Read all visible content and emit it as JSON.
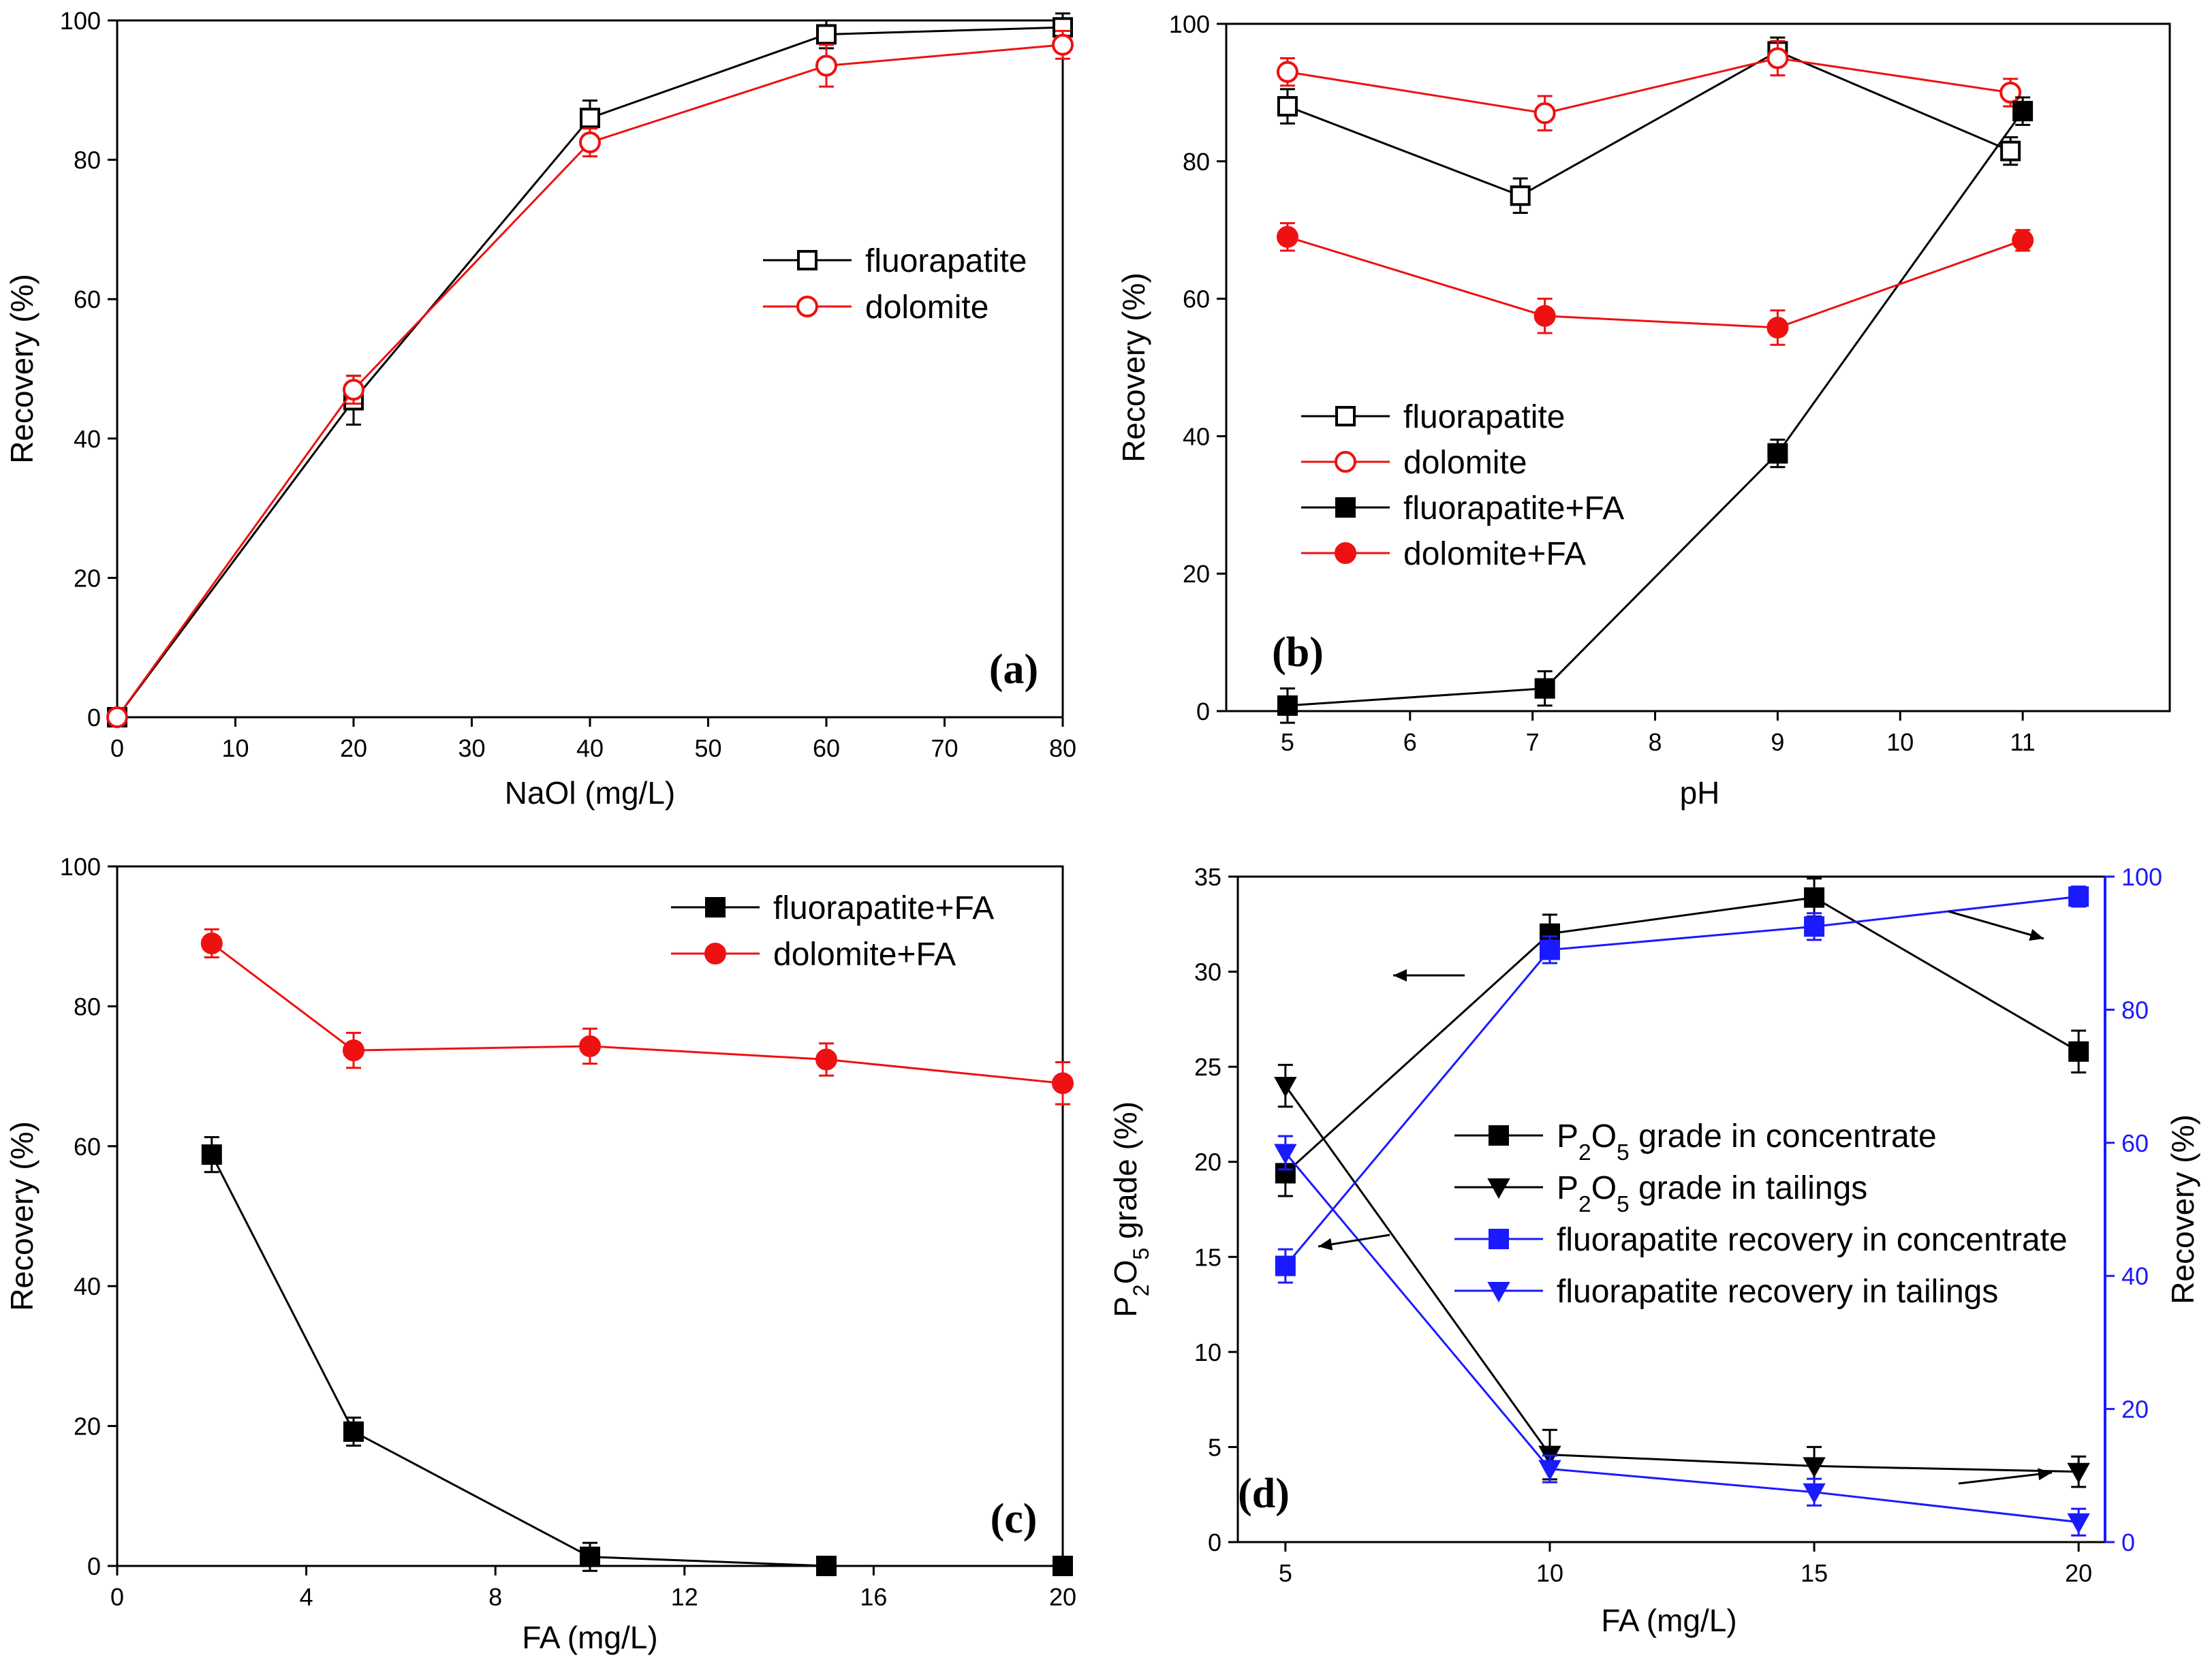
{
  "colors": {
    "black": "#000000",
    "red": "#ee1111",
    "blue": "#1a1aff"
  },
  "chart_data": [
    {
      "type": "line",
      "panel_label": "(a)",
      "xlabel": "NaOl (mg/L)",
      "ylabel": "Recovery (%)",
      "xlim": [
        0,
        80
      ],
      "ylim": [
        0,
        100
      ],
      "xticks": [
        0,
        10,
        20,
        30,
        40,
        50,
        60,
        70,
        80
      ],
      "yticks": [
        0,
        20,
        40,
        60,
        80,
        100
      ],
      "legend_position": "center-right",
      "series": [
        {
          "name": "fluorapatite",
          "color": "#000000",
          "marker": "square-open",
          "x": [
            0,
            20,
            40,
            60,
            80
          ],
          "y": [
            0,
            45.5,
            86,
            98,
            99
          ],
          "err": [
            0.5,
            3.5,
            2.5,
            2,
            2
          ]
        },
        {
          "name": "dolomite",
          "color": "#ee1111",
          "marker": "circle-open",
          "x": [
            0,
            20,
            40,
            60,
            80
          ],
          "y": [
            0,
            47,
            82.5,
            93.5,
            96.5
          ],
          "err": [
            0.5,
            2,
            2,
            3,
            2
          ]
        }
      ]
    },
    {
      "type": "line",
      "panel_label": "(b)",
      "xlabel": "pH",
      "ylabel": "Recovery (%)",
      "xlim": [
        4.5,
        12.2
      ],
      "ylim": [
        0,
        100
      ],
      "xticks": [
        5,
        6,
        7,
        8,
        9,
        10,
        11
      ],
      "yticks": [
        0,
        20,
        40,
        60,
        80,
        100
      ],
      "legend_position": "center-left",
      "series": [
        {
          "name": "fluorapatite",
          "color": "#000000",
          "marker": "square-open",
          "x": [
            5,
            6.9,
            9,
            10.9
          ],
          "y": [
            88,
            75,
            96,
            81.5
          ],
          "err": [
            2.5,
            2.5,
            2,
            2
          ]
        },
        {
          "name": "dolomite",
          "color": "#ee1111",
          "marker": "circle-open",
          "x": [
            5,
            7.1,
            9,
            10.9
          ],
          "y": [
            93,
            87,
            95,
            90
          ],
          "err": [
            2,
            2.5,
            2.5,
            2
          ]
        },
        {
          "name": "fluorapatite+FA",
          "color": "#000000",
          "marker": "square-filled",
          "x": [
            5,
            7.1,
            9,
            11
          ],
          "y": [
            0.8,
            3.3,
            37.5,
            87.3
          ],
          "err": [
            2.5,
            2.5,
            2,
            2
          ]
        },
        {
          "name": "dolomite+FA",
          "color": "#ee1111",
          "marker": "circle-filled",
          "x": [
            5,
            7.1,
            9,
            11
          ],
          "y": [
            69,
            57.5,
            55.8,
            68.5
          ],
          "err": [
            2,
            2.5,
            2.5,
            1.5
          ]
        }
      ]
    },
    {
      "type": "line",
      "panel_label": "(c)",
      "xlabel": "FA (mg/L)",
      "ylabel": "Recovery (%)",
      "xlim": [
        0,
        20
      ],
      "ylim": [
        0,
        100
      ],
      "xticks": [
        0,
        4,
        8,
        12,
        16,
        20
      ],
      "yticks": [
        0,
        20,
        40,
        60,
        80,
        100
      ],
      "legend_position": "top-right",
      "series": [
        {
          "name": "fluorapatite+FA",
          "color": "#000000",
          "marker": "square-filled",
          "x": [
            2,
            5,
            10,
            15,
            20
          ],
          "y": [
            58.8,
            19.2,
            1.3,
            0,
            0
          ],
          "err": [
            2.5,
            2,
            2,
            0.3,
            0.3
          ]
        },
        {
          "name": "dolomite+FA",
          "color": "#ee1111",
          "marker": "circle-filled",
          "x": [
            2,
            5,
            10,
            15,
            20
          ],
          "y": [
            89,
            73.7,
            74.3,
            72.4,
            69
          ],
          "err": [
            2,
            2.5,
            2.5,
            2.3,
            3
          ]
        }
      ]
    },
    {
      "type": "line",
      "panel_label": "(d)",
      "xlabel": "FA (mg/L)",
      "ylabel": "P2O5 grade (%)",
      "ylabel_right": "Recovery (%)",
      "xlim": [
        4.1,
        20.5
      ],
      "ylim": [
        0,
        35
      ],
      "ylim_right": [
        0,
        100
      ],
      "xticks": [
        5,
        10,
        15,
        20
      ],
      "yticks": [
        0,
        5,
        10,
        15,
        20,
        25,
        30,
        35
      ],
      "yticks_right": [
        0,
        20,
        40,
        60,
        80,
        100
      ],
      "legend_position": "center-right",
      "series": [
        {
          "name": "P2O5 grade in concentrate",
          "color": "#000000",
          "marker": "square-filled",
          "axis": "left",
          "x": [
            5,
            10,
            15,
            20
          ],
          "y": [
            19.4,
            32,
            33.9,
            25.8
          ],
          "err": [
            1.2,
            1,
            1,
            1.1
          ]
        },
        {
          "name": "P2O5 grade in tailings",
          "color": "#000000",
          "marker": "triangle-down-filled",
          "axis": "left",
          "x": [
            5,
            10,
            15,
            20
          ],
          "y": [
            24,
            4.6,
            4,
            3.7
          ],
          "err": [
            1.1,
            1.3,
            1,
            0.8
          ]
        },
        {
          "name": "fluorapatite recovery in concentrate",
          "color": "#1a1aff",
          "marker": "square-filled",
          "axis": "right",
          "x": [
            5,
            10,
            15,
            20
          ],
          "y": [
            41.5,
            89,
            92.5,
            97
          ],
          "err": [
            2.5,
            2,
            2,
            1.5
          ]
        },
        {
          "name": "fluorapatite recovery in tailings",
          "color": "#1a1aff",
          "marker": "triangle-down-filled",
          "axis": "right",
          "x": [
            5,
            10,
            15,
            20
          ],
          "y": [
            58.5,
            11,
            7.5,
            3
          ],
          "err": [
            2.5,
            2,
            2,
            2
          ]
        }
      ]
    }
  ]
}
